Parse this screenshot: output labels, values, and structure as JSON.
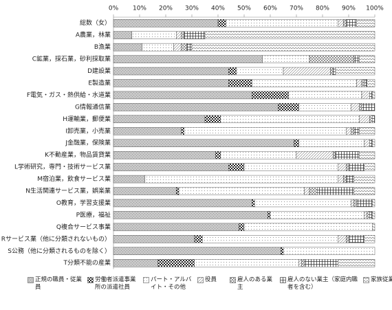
{
  "chart_data": {
    "type": "bar",
    "orientation": "horizontal",
    "stacked": true,
    "categories": [
      "総数（女）",
      "A農業，林業",
      "B漁業",
      "C鉱業，採石業，砂利採取業",
      "D建設業",
      "E製造業",
      "F電気・ガス・熱供給・水道業",
      "G情報通信業",
      "H運輸業，郵便業",
      "I卸売業，小売業",
      "J金融業，保険業",
      "K不動産業，物品賃貸業",
      "L学術研究，専門・技術サービス業",
      "M宿泊業，飲食サービス業",
      "N生活関連サービス業，娯楽業",
      "O教育，学習支援業",
      "P医療，福祉",
      "Q複合サービス事業",
      "Rサービス業（他に分類されないもの）",
      "S公務（他に分類されるものを除く）",
      "T分類不能の産業"
    ],
    "series": [
      {
        "name": "正規の職員・従業員",
        "color": "#999999",
        "values": [
          40,
          7,
          11,
          57,
          44,
          44,
          53,
          63,
          35,
          26,
          69,
          39,
          44,
          12,
          24,
          53,
          59,
          48,
          31,
          64,
          17
        ]
      },
      {
        "name": "労働者派遣事業所の派遣社員",
        "color": "#222222",
        "values": [
          3,
          0,
          0,
          0,
          3,
          9,
          14,
          8,
          6,
          1,
          2,
          2,
          6,
          0,
          1,
          1,
          1,
          2,
          3,
          1,
          14
        ]
      },
      {
        "name": "パート・アルバイト・その他",
        "color": "#555555",
        "values": [
          43,
          17,
          12,
          18,
          18,
          40,
          28,
          20,
          53,
          62,
          25,
          29,
          36,
          74,
          48,
          37,
          36,
          49,
          52,
          35,
          40
        ]
      },
      {
        "name": "役員",
        "color": "#777777",
        "values": [
          2,
          2,
          3,
          0,
          18,
          2,
          3,
          3,
          4,
          2,
          2,
          14,
          3,
          2,
          2,
          1,
          1,
          0,
          3,
          0,
          1
        ]
      },
      {
        "name": "雇人のある業主",
        "color": "#555555",
        "values": [
          1,
          1,
          2,
          17,
          1,
          1,
          0,
          1,
          1,
          1,
          0,
          1,
          1,
          1,
          3,
          1,
          1,
          0,
          1,
          0,
          1
        ]
      },
      {
        "name": "雇人のない業主（家庭内職者を含む）",
        "color": "#333333",
        "values": [
          4,
          8,
          2,
          2,
          1,
          1,
          1,
          5,
          1,
          2,
          1,
          9,
          6,
          3,
          14,
          6,
          1,
          0,
          6,
          0,
          13
        ]
      },
      {
        "name": "家族従業者",
        "color": "#666666",
        "values": [
          7,
          65,
          70,
          6,
          15,
          3,
          1,
          0,
          0,
          6,
          1,
          6,
          4,
          8,
          8,
          1,
          1,
          1,
          4,
          0,
          14
        ]
      }
    ],
    "xlim": [
      0,
      100
    ],
    "xticks": [
      {
        "value": 0,
        "label": "0%"
      },
      {
        "value": 10,
        "label": "10%"
      },
      {
        "value": 20,
        "label": "20%"
      },
      {
        "value": 30,
        "label": "30%"
      },
      {
        "value": 40,
        "label": "40%"
      },
      {
        "value": 50,
        "label": "50%"
      },
      {
        "value": 60,
        "label": "60%"
      },
      {
        "value": 70,
        "label": "70%"
      },
      {
        "value": 80,
        "label": "80%"
      },
      {
        "value": 90,
        "label": "90%"
      },
      {
        "value": 100,
        "label": "100%"
      }
    ],
    "legend": "bottom"
  }
}
